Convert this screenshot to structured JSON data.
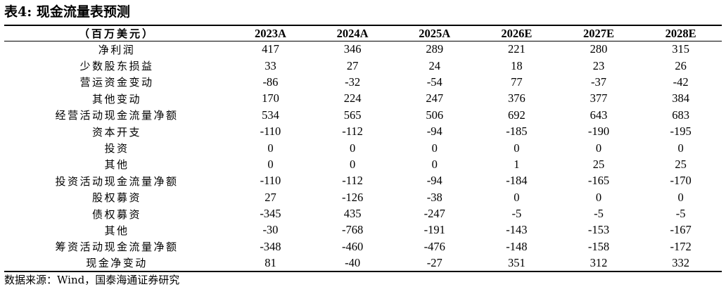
{
  "title": "表4: 现金流量表预测",
  "table": {
    "unit_header": "（百万美元）",
    "years": [
      "2023A",
      "2024A",
      "2025A",
      "2026E",
      "2027E",
      "2028E"
    ],
    "rows": [
      {
        "label": "净利润",
        "values": [
          "417",
          "346",
          "289",
          "221",
          "280",
          "315"
        ]
      },
      {
        "label": "少数股东损益",
        "values": [
          "33",
          "27",
          "24",
          "18",
          "23",
          "26"
        ]
      },
      {
        "label": "营运资金变动",
        "values": [
          "-86",
          "-32",
          "-54",
          "77",
          "-37",
          "-42"
        ]
      },
      {
        "label": "其他变动",
        "values": [
          "170",
          "224",
          "247",
          "376",
          "377",
          "384"
        ]
      },
      {
        "label": "经营活动现金流量净额",
        "values": [
          "534",
          "565",
          "506",
          "692",
          "643",
          "683"
        ]
      },
      {
        "label": "资本开支",
        "values": [
          "-110",
          "-112",
          "-94",
          "-185",
          "-190",
          "-195"
        ]
      },
      {
        "label": "投资",
        "values": [
          "0",
          "0",
          "0",
          "0",
          "0",
          "0"
        ]
      },
      {
        "label": "其他",
        "values": [
          "0",
          "0",
          "0",
          "1",
          "25",
          "25"
        ]
      },
      {
        "label": "投资活动现金流量净额",
        "values": [
          "-110",
          "-112",
          "-94",
          "-184",
          "-165",
          "-170"
        ]
      },
      {
        "label": "股权募资",
        "values": [
          "27",
          "-126",
          "-38",
          "0",
          "0",
          "0"
        ]
      },
      {
        "label": "债权募资",
        "values": [
          "-345",
          "435",
          "-247",
          "-5",
          "-5",
          "-5"
        ]
      },
      {
        "label": "其他",
        "values": [
          "-30",
          "-768",
          "-191",
          "-143",
          "-153",
          "-167"
        ]
      },
      {
        "label": "筹资活动现金流量净额",
        "values": [
          "-348",
          "-460",
          "-476",
          "-148",
          "-158",
          "-172"
        ]
      },
      {
        "label": "现金净变动",
        "values": [
          "81",
          "-40",
          "-27",
          "351",
          "312",
          "332"
        ]
      }
    ]
  },
  "source": "数据来源：Wind，国泰海通证券研究"
}
